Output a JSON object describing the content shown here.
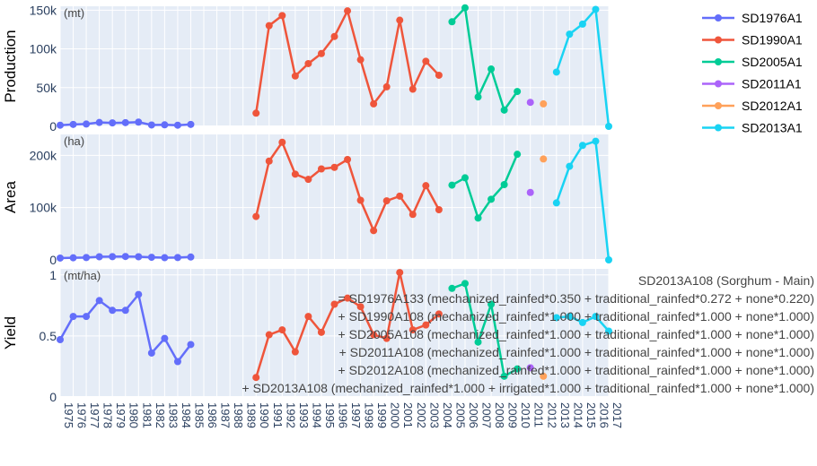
{
  "chart_data": {
    "type": "line",
    "categories": [
      "1975",
      "1976",
      "1977",
      "1978",
      "1979",
      "1980",
      "1981",
      "1982",
      "1983",
      "1984",
      "1985",
      "1986",
      "1987",
      "1988",
      "1989",
      "1990",
      "1991",
      "1992",
      "1993",
      "1994",
      "1995",
      "1996",
      "1997",
      "1998",
      "1999",
      "2000",
      "2001",
      "2002",
      "2003",
      "2004",
      "2005",
      "2006",
      "2007",
      "2008",
      "2009",
      "2010",
      "2011",
      "2012",
      "2013",
      "2014",
      "2015",
      "2016",
      "2017"
    ],
    "panels": [
      {
        "ylabel": "Production",
        "unit": "(mt)",
        "ylim": [
          0,
          155000
        ],
        "yticks": [
          {
            "v": 0,
            "t": "0"
          },
          {
            "v": 50000,
            "t": "50k"
          },
          {
            "v": 100000,
            "t": "100k"
          },
          {
            "v": 150000,
            "t": "150k"
          }
        ]
      },
      {
        "ylabel": "Area",
        "unit": "(ha)",
        "ylim": [
          0,
          240000
        ],
        "yticks": [
          {
            "v": 0,
            "t": "0"
          },
          {
            "v": 100000,
            "t": "100k"
          },
          {
            "v": 200000,
            "t": "200k"
          }
        ]
      },
      {
        "ylabel": "Yield",
        "unit": "(mt/ha)",
        "ylim": [
          0,
          1.05
        ],
        "yticks": [
          {
            "v": 0,
            "t": "0"
          },
          {
            "v": 0.5,
            "t": "0.5"
          },
          {
            "v": 1,
            "t": "1"
          }
        ]
      }
    ],
    "series": [
      {
        "name": "SD1976A1",
        "color": "#636efa",
        "x": [
          "1975",
          "1976",
          "1977",
          "1978",
          "1979",
          "1980",
          "1981",
          "1982",
          "1983",
          "1984",
          "1985"
        ],
        "production": [
          1500,
          2500,
          3000,
          5000,
          4500,
          4800,
          5500,
          1800,
          2000,
          1500,
          2500
        ],
        "area": [
          3500,
          4000,
          4500,
          6000,
          6200,
          6500,
          6000,
          5000,
          4200,
          4500,
          5500
        ],
        "yield": [
          0.47,
          0.66,
          0.66,
          0.79,
          0.71,
          0.71,
          0.84,
          0.36,
          0.48,
          0.29,
          0.43
        ]
      },
      {
        "name": "SD1990A1",
        "color": "#ef553b",
        "x": [
          "1990",
          "1991",
          "1992",
          "1993",
          "1994",
          "1995",
          "1996",
          "1997",
          "1998",
          "1999",
          "2000",
          "2001",
          "2002",
          "2003",
          "2004"
        ],
        "production": [
          17000,
          130000,
          143000,
          65000,
          81000,
          94000,
          116000,
          149000,
          86000,
          29000,
          51000,
          137000,
          48000,
          84000,
          66000
        ],
        "area": [
          83000,
          189000,
          225000,
          164000,
          154000,
          174000,
          177000,
          192000,
          114000,
          56000,
          113000,
          122000,
          87000,
          142000,
          96000
        ],
        "yield": [
          0.16,
          0.51,
          0.55,
          0.37,
          0.66,
          0.53,
          0.76,
          0.81,
          0.74,
          0.51,
          0.48,
          1.02,
          0.55,
          0.59,
          0.68
        ]
      },
      {
        "name": "SD2005A1",
        "color": "#00cc96",
        "x": [
          "2005",
          "2006",
          "2007",
          "2008",
          "2009",
          "2010"
        ],
        "production": [
          135000,
          153000,
          38000,
          74000,
          21000,
          45000
        ],
        "area": [
          143000,
          157000,
          80000,
          116000,
          144000,
          202000
        ],
        "yield": [
          0.89,
          0.93,
          0.45,
          0.76,
          0.17,
          0.23
        ]
      },
      {
        "name": "SD2011A1",
        "color": "#ab63fa",
        "x": [
          "2011"
        ],
        "production": [
          31000
        ],
        "area": [
          129000
        ],
        "yield": [
          0.24
        ]
      },
      {
        "name": "SD2012A1",
        "color": "#ffa15a",
        "x": [
          "2012"
        ],
        "production": [
          29000
        ],
        "area": [
          193000
        ],
        "yield": [
          0.17
        ]
      },
      {
        "name": "SD2013A1",
        "color": "#19d3f3",
        "x": [
          "2013",
          "2014",
          "2015",
          "2016",
          "2017"
        ],
        "production": [
          70000,
          119000,
          132000,
          151000,
          0
        ],
        "area": [
          109000,
          179000,
          219000,
          227000,
          0
        ],
        "yield": [
          0.65,
          0.66,
          0.61,
          0.66,
          0.54
        ]
      }
    ],
    "annotation": [
      "SD2013A108 (Sorghum - Main)",
      "= SD1976A133 (mechanized_rainfed*0.350 + traditional_rainfed*0.272 + none*0.220)",
      "+ SD1990A108 (mechanized_rainfed*1.000 + traditional_rainfed*1.000 + none*1.000)",
      "+ SD2005A108 (mechanized_rainfed*1.000 + traditional_rainfed*1.000 + none*1.000)",
      "+ SD2011A108 (mechanized_rainfed*1.000 + traditional_rainfed*1.000 + none*1.000)",
      "+ SD2012A108 (mechanized_rainfed*1.000 + traditional_rainfed*1.000 + none*1.000)",
      "+ SD2013A108 (mechanized_rainfed*1.000 + irrigated*1.000 + traditional_rainfed*1.000 + none*1.000)"
    ],
    "legend_position": "top-right",
    "grid": true
  }
}
